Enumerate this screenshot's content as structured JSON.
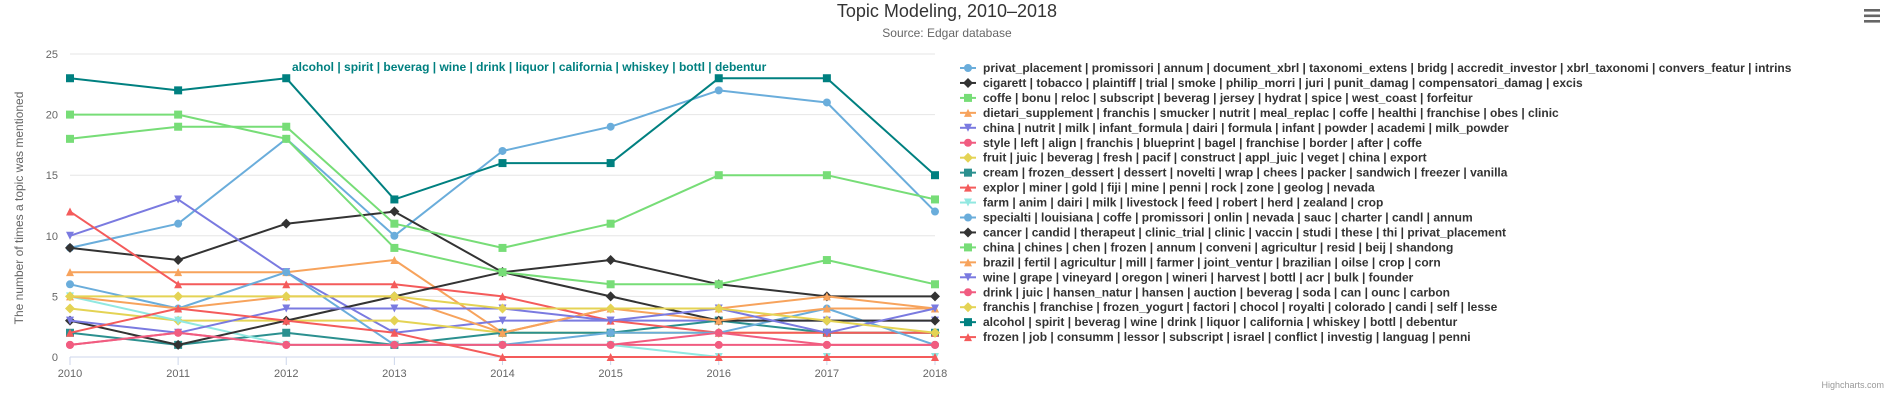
{
  "chart_data": {
    "type": "line",
    "title": "Topic Modeling, 2010–2018",
    "subtitle": "Source: Edgar database",
    "ylabel": "The number of times a topic was mentioned",
    "xlabel": "",
    "ylim": [
      0,
      25
    ],
    "yticks": [
      0,
      5,
      10,
      15,
      20,
      25
    ],
    "x": [
      2010,
      2011,
      2012,
      2013,
      2014,
      2015,
      2016,
      2017,
      2018
    ],
    "grid": true,
    "legend_position": "right",
    "credits": "Highcharts.com",
    "menu_icon": "hamburger-menu-icon",
    "annotation": {
      "text": "alcohol | spirit | beverag | wine | drink | liquor | california | whiskey | bottl | debentur",
      "color": "#008080"
    },
    "series": [
      {
        "name": "privat_placement | promissori | annum | document_xbrl | taxonomi_extens | bridg | accredit_investor | xbrl_taxonomi | convers_featur | intrins",
        "color": "#6aaddb",
        "marker": "circle",
        "values": [
          9,
          11,
          18,
          10,
          17,
          19,
          22,
          21,
          12
        ]
      },
      {
        "name": "cigarett | tobacco | plaintiff | trial | smoke | philip_morri | juri | punit_damag | compensatori_damag | excis",
        "color": "#333333",
        "marker": "diamond",
        "values": [
          9,
          8,
          11,
          12,
          7,
          8,
          6,
          5,
          5
        ]
      },
      {
        "name": "coffe | bonu | reloc | subscript | beverag | jersey | hydrat | spice | west_coast | forfeitur",
        "color": "#77dd77",
        "marker": "square",
        "values": [
          18,
          19,
          19,
          11,
          9,
          11,
          15,
          15,
          13
        ]
      },
      {
        "name": "dietari_supplement | franchis | smucker | nutrit | meal_replac | coffe | healthi | franchise | obes | clinic",
        "color": "#f7a35c",
        "marker": "triangle",
        "values": [
          7,
          7,
          7,
          8,
          2,
          4,
          4,
          5,
          4
        ]
      },
      {
        "name": "china | nutrit | milk | infant_formula | dairi | formula | infant | powder | academi | milk_powder",
        "color": "#7a7ae0",
        "marker": "triangle-down",
        "values": [
          10,
          13,
          7,
          2,
          3,
          3,
          3,
          3,
          3
        ]
      },
      {
        "name": "style | left | align | franchis | blueprint | bagel | franchise | border | after | coffe",
        "color": "#f15c80",
        "marker": "circle",
        "values": [
          1,
          2,
          1,
          1,
          1,
          1,
          1,
          1,
          1
        ]
      },
      {
        "name": "fruit | juic | beverag | fresh | pacif | construct | appl_juic | veget | china | export",
        "color": "#e4d354",
        "marker": "diamond",
        "values": [
          4,
          3,
          3,
          3,
          2,
          2,
          2,
          2,
          2
        ]
      },
      {
        "name": "cream | frozen_dessert | dessert | novelti | wrap | chees | packer | sandwich | freezer | vanilla",
        "color": "#2b908f",
        "marker": "square",
        "values": [
          2,
          1,
          2,
          1,
          2,
          2,
          3,
          2,
          2
        ]
      },
      {
        "name": "explor | miner | gold | fiji | mine | penni | rock | zone | geolog | nevada",
        "color": "#f45b5b",
        "marker": "triangle",
        "values": [
          12,
          6,
          6,
          6,
          5,
          3,
          2,
          2,
          2
        ]
      },
      {
        "name": "farm | anim | dairi | milk | livestock | feed | robert | herd | zealand | crop",
        "color": "#91e8e1",
        "marker": "triangle-down",
        "values": [
          5,
          3,
          1,
          1,
          1,
          1,
          0,
          0,
          0
        ]
      },
      {
        "name": "specialti | louisiana | coffe | promissori | onlin | nevada | sauc | charter | candl | annum",
        "color": "#6aaddb",
        "marker": "circle",
        "values": [
          6,
          4,
          7,
          1,
          1,
          2,
          2,
          4,
          1
        ]
      },
      {
        "name": "cancer | candid | therapeut | clinic_trial | clinic | vaccin | studi | these | thi | privat_placement",
        "color": "#333333",
        "marker": "diamond",
        "values": [
          3,
          1,
          3,
          5,
          7,
          5,
          3,
          3,
          3
        ]
      },
      {
        "name": "china | chines | chen | frozen | annum | conveni | agricultur | resid | beij | shandong",
        "color": "#77dd77",
        "marker": "square",
        "values": [
          20,
          20,
          18,
          9,
          7,
          6,
          6,
          8,
          6
        ]
      },
      {
        "name": "brazil | fertil | agricultur | mill | farmer | joint_ventur | brazilian | oilse | crop | corn",
        "color": "#f7a35c",
        "marker": "triangle",
        "values": [
          5,
          4,
          5,
          5,
          2,
          4,
          3,
          4,
          4
        ]
      },
      {
        "name": "wine | grape | vineyard | oregon | wineri | harvest | bottl | acr | bulk | founder",
        "color": "#7a7ae0",
        "marker": "triangle-down",
        "values": [
          3,
          2,
          4,
          4,
          4,
          3,
          4,
          2,
          4
        ]
      },
      {
        "name": "drink | juic | hansen_natur | hansen | auction | beverag | soda | can | ounc | carbon",
        "color": "#f15c80",
        "marker": "circle",
        "values": [
          1,
          2,
          1,
          1,
          1,
          1,
          2,
          1,
          1
        ]
      },
      {
        "name": "franchis | franchise | frozen_yogurt | factori | chocol | royalti | colorado | candi | self | lesse",
        "color": "#e4d354",
        "marker": "diamond",
        "values": [
          5,
          5,
          5,
          5,
          4,
          4,
          4,
          3,
          2
        ]
      },
      {
        "name": "alcohol | spirit | beverag | wine | drink | liquor | california | whiskey | bottl | debentur",
        "color": "#008080",
        "marker": "square",
        "values": [
          23,
          22,
          23,
          13,
          16,
          16,
          23,
          23,
          15
        ]
      },
      {
        "name": "frozen | job | consumm | lessor | subscript | israel | conflict | investig | languag | penni",
        "color": "#f45b5b",
        "marker": "triangle",
        "values": [
          2,
          4,
          3,
          2,
          0,
          0,
          0,
          0,
          0
        ]
      }
    ]
  }
}
